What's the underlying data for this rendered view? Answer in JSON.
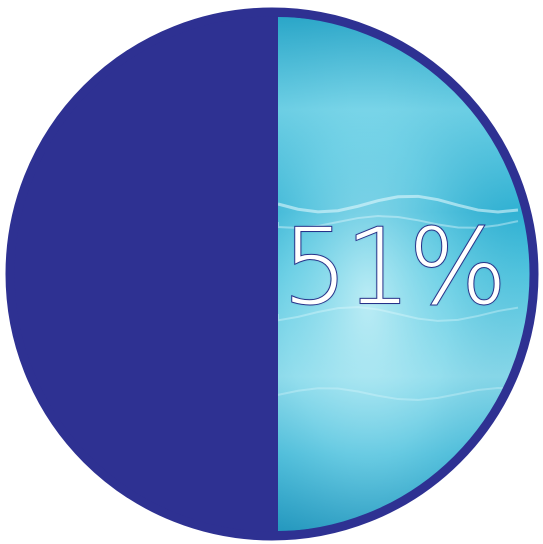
{
  "chart_data": {
    "type": "pie",
    "title": "",
    "label": "51%",
    "values": [
      51,
      49
    ],
    "categories": [
      "",
      ""
    ],
    "colors": {
      "left": "#2e3192",
      "right_water_light": "#9fe3f0",
      "right_water_mid": "#3fc0dc",
      "right_water_dark": "#1f8fb5",
      "outer_ring": "#2e3192",
      "divider": "#2e3192"
    },
    "start_angle_deg": 0,
    "grid": false,
    "legend": "none"
  }
}
